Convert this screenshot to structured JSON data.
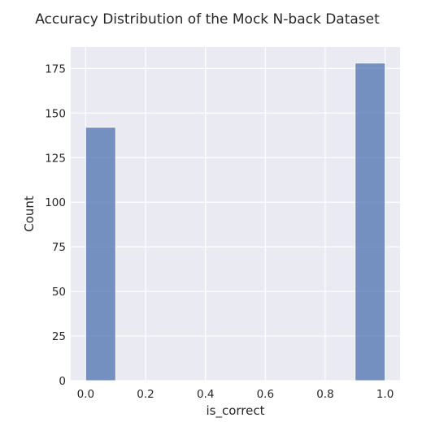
{
  "chart_data": {
    "type": "bar",
    "title": "Accuracy Distribution of the Mock N-back Dataset",
    "xlabel": "is_correct",
    "ylabel": "Count",
    "xlim": [
      -0.05,
      1.05
    ],
    "ylim": [
      0,
      187
    ],
    "x_ticks": [
      "0.0",
      "0.2",
      "0.4",
      "0.6",
      "0.8",
      "1.0"
    ],
    "y_ticks": [
      "0",
      "25",
      "50",
      "75",
      "100",
      "125",
      "150",
      "175"
    ],
    "bins": [
      {
        "x_start": 0.0,
        "x_end": 0.1,
        "value": 142
      },
      {
        "x_start": 0.1,
        "x_end": 0.2,
        "value": 0
      },
      {
        "x_start": 0.2,
        "x_end": 0.3,
        "value": 0
      },
      {
        "x_start": 0.3,
        "x_end": 0.4,
        "value": 0
      },
      {
        "x_start": 0.4,
        "x_end": 0.5,
        "value": 0
      },
      {
        "x_start": 0.5,
        "x_end": 0.6,
        "value": 0
      },
      {
        "x_start": 0.6,
        "x_end": 0.7,
        "value": 0
      },
      {
        "x_start": 0.7,
        "x_end": 0.8,
        "value": 0
      },
      {
        "x_start": 0.8,
        "x_end": 0.9,
        "value": 0
      },
      {
        "x_start": 0.9,
        "x_end": 1.0,
        "value": 178
      }
    ],
    "grid": true,
    "colors": {
      "bar_fill": "#4c72b0",
      "bar_stroke": "#ffffff",
      "plot_background": "#eaeaf2",
      "grid": "#ffffff"
    }
  }
}
